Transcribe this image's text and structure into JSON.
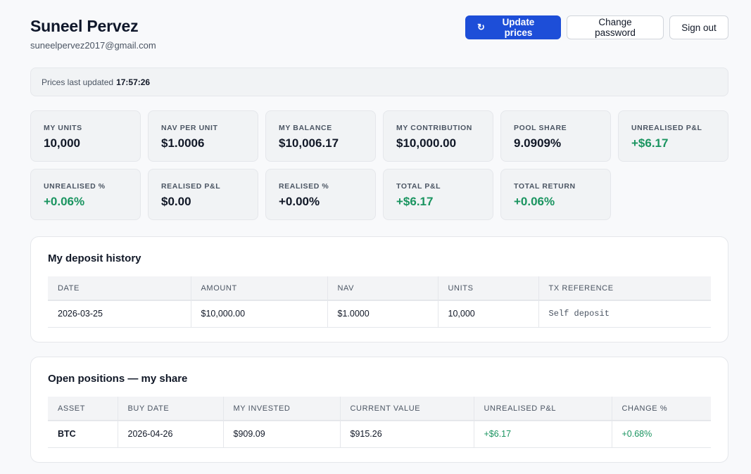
{
  "user": {
    "name": "Suneel Pervez",
    "email": "suneelpervez2017@gmail.com"
  },
  "actions": {
    "update_label": "Update prices",
    "update_icon": "refresh-icon",
    "change_password_label": "Change password",
    "sign_out_label": "Sign out"
  },
  "status": {
    "prefix": "Prices last updated",
    "time": "17:57:26"
  },
  "colors": {
    "primary": "#1d4ed8",
    "positive": "#1a9460"
  },
  "stats": [
    {
      "label": "MY UNITS",
      "value": "10,000",
      "tone": "neutral"
    },
    {
      "label": "NAV PER UNIT",
      "value": "$1.0006",
      "tone": "neutral"
    },
    {
      "label": "MY BALANCE",
      "value": "$10,006.17",
      "tone": "neutral"
    },
    {
      "label": "MY CONTRIBUTION",
      "value": "$10,000.00",
      "tone": "neutral"
    },
    {
      "label": "POOL SHARE",
      "value": "9.0909%",
      "tone": "neutral"
    },
    {
      "label": "UNREALISED P&L",
      "value": "+$6.17",
      "tone": "positive"
    },
    {
      "label": "UNREALISED %",
      "value": "+0.06%",
      "tone": "positive"
    },
    {
      "label": "REALISED P&L",
      "value": "$0.00",
      "tone": "neutral"
    },
    {
      "label": "REALISED %",
      "value": "+0.00%",
      "tone": "neutral"
    },
    {
      "label": "TOTAL P&L",
      "value": "+$6.17",
      "tone": "positive"
    },
    {
      "label": "TOTAL RETURN",
      "value": "+0.06%",
      "tone": "positive"
    }
  ],
  "deposits": {
    "title": "My deposit history",
    "columns": [
      "DATE",
      "AMOUNT",
      "NAV",
      "UNITS",
      "TX REFERENCE"
    ],
    "rows": [
      [
        "2026-03-25",
        "$10,000.00",
        "$1.0000",
        "10,000",
        "Self deposit"
      ]
    ]
  },
  "positions": {
    "title": "Open positions — my share",
    "columns": [
      "ASSET",
      "BUY DATE",
      "MY INVESTED",
      "CURRENT VALUE",
      "UNREALISED P&L",
      "CHANGE %"
    ],
    "rows": [
      [
        "BTC",
        "2026-04-26",
        "$909.09",
        "$915.26",
        "+$6.17",
        "+0.68%"
      ]
    ]
  }
}
